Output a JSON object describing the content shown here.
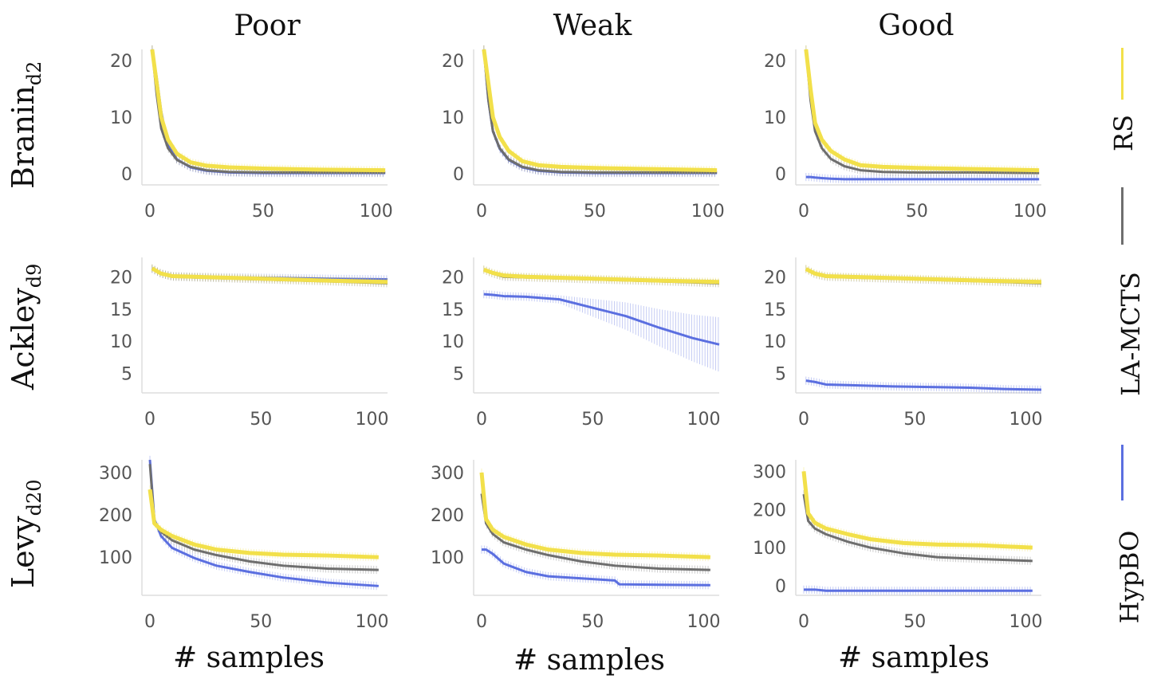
{
  "columns": [
    "Poor",
    "Weak",
    "Good"
  ],
  "rows": [
    {
      "name": "Branin",
      "sub": "d2"
    },
    {
      "name": "Ackley",
      "sub": "d9"
    },
    {
      "name": "Levy",
      "sub": "d20"
    }
  ],
  "xlabel": "# samples",
  "legend": [
    {
      "label": "RS",
      "color": "#f2e04a"
    },
    {
      "label": "LA-MCTS",
      "color": "#6e6e6e"
    },
    {
      "label": "HypBO",
      "color": "#5b6fe0"
    }
  ],
  "chart_data": [
    {
      "type": "line",
      "row": "Branin_d2",
      "column": "Poor",
      "xlim": [
        0,
        105
      ],
      "ylim": [
        -2,
        22
      ],
      "xticks": [
        0,
        50,
        100
      ],
      "yticks": [
        0,
        10,
        20
      ],
      "series": [
        {
          "name": "RS",
          "x": [
            1,
            3,
            5,
            8,
            12,
            18,
            25,
            35,
            50,
            75,
            104
          ],
          "values": [
            22,
            16,
            10,
            6,
            3.5,
            2,
            1.4,
            1.1,
            0.9,
            0.7,
            0.6
          ]
        },
        {
          "name": "LA-MCTS",
          "x": [
            1,
            3,
            5,
            8,
            12,
            18,
            25,
            35,
            50,
            75,
            104
          ],
          "values": [
            22,
            14,
            8,
            4.5,
            2.4,
            1.2,
            0.6,
            0.3,
            0.2,
            0.2,
            0.2
          ]
        },
        {
          "name": "HypBO",
          "x": [
            1,
            3,
            5,
            8,
            12,
            18,
            25,
            35,
            50,
            75,
            104
          ],
          "values": [
            22,
            17,
            11,
            5,
            2.5,
            1.1,
            0.5,
            0.2,
            0.1,
            0.1,
            0.1
          ]
        }
      ]
    },
    {
      "type": "line",
      "row": "Branin_d2",
      "column": "Weak",
      "xlim": [
        0,
        105
      ],
      "ylim": [
        -2,
        22
      ],
      "xticks": [
        0,
        50,
        100
      ],
      "yticks": [
        0,
        10,
        20
      ],
      "series": [
        {
          "name": "RS",
          "x": [
            1,
            3,
            5,
            8,
            12,
            18,
            25,
            35,
            50,
            75,
            104
          ],
          "values": [
            22,
            16,
            10,
            6.5,
            4,
            2.2,
            1.5,
            1.2,
            1.0,
            0.8,
            0.6
          ]
        },
        {
          "name": "LA-MCTS",
          "x": [
            1,
            3,
            5,
            8,
            12,
            18,
            25,
            35,
            50,
            75,
            104
          ],
          "values": [
            22,
            13,
            7.5,
            4.5,
            2.5,
            1.2,
            0.6,
            0.3,
            0.2,
            0.2,
            0.2
          ]
        },
        {
          "name": "HypBO",
          "x": [
            1,
            3,
            5,
            8,
            12,
            18,
            25,
            35,
            50,
            75,
            104
          ],
          "values": [
            22,
            13,
            7.5,
            4.4,
            2.4,
            1.1,
            0.5,
            0.2,
            0.1,
            0.1,
            0.1
          ]
        }
      ]
    },
    {
      "type": "line",
      "row": "Branin_d2",
      "column": "Good",
      "xlim": [
        0,
        105
      ],
      "ylim": [
        -2,
        22
      ],
      "xticks": [
        0,
        50,
        100
      ],
      "yticks": [
        0,
        10,
        20
      ],
      "series": [
        {
          "name": "RS",
          "x": [
            1,
            3,
            5,
            8,
            12,
            18,
            25,
            35,
            50,
            75,
            104
          ],
          "values": [
            22,
            15,
            9,
            6,
            4,
            2.5,
            1.5,
            1.2,
            1.0,
            0.8,
            0.6
          ]
        },
        {
          "name": "LA-MCTS",
          "x": [
            1,
            3,
            5,
            8,
            12,
            18,
            25,
            35,
            50,
            75,
            104
          ],
          "values": [
            22,
            13,
            7.5,
            4.5,
            2.6,
            1.3,
            0.6,
            0.3,
            0.2,
            0.2,
            0.1
          ]
        },
        {
          "name": "HypBO",
          "x": [
            1,
            3,
            5,
            8,
            12,
            18,
            25,
            35,
            50,
            75,
            104
          ],
          "values": [
            -0.6,
            -0.6,
            -0.7,
            -0.8,
            -0.9,
            -1.0,
            -1.0,
            -1.0,
            -1.0,
            -1.0,
            -1.0
          ]
        }
      ]
    },
    {
      "type": "line",
      "row": "Ackley_d9",
      "column": "Poor",
      "xlim": [
        0,
        107
      ],
      "ylim": [
        2,
        23
      ],
      "xticks": [
        0,
        50,
        100
      ],
      "yticks": [
        5,
        10,
        15,
        20
      ],
      "series": [
        {
          "name": "RS",
          "x": [
            1,
            5,
            10,
            20,
            40,
            60,
            80,
            107
          ],
          "values": [
            21.3,
            20.5,
            20.1,
            20.0,
            19.8,
            19.6,
            19.4,
            19.2
          ]
        },
        {
          "name": "LA-MCTS",
          "x": [
            1,
            5,
            10,
            20,
            40,
            60,
            80,
            107
          ],
          "values": [
            21.3,
            20.5,
            20.0,
            19.9,
            19.7,
            19.5,
            19.3,
            19.0
          ]
        },
        {
          "name": "HypBO",
          "x": [
            1,
            5,
            10,
            20,
            40,
            60,
            80,
            107
          ],
          "values": [
            21.2,
            20.5,
            20.1,
            20.0,
            19.9,
            19.8,
            19.7,
            19.6
          ]
        }
      ]
    },
    {
      "type": "line",
      "row": "Ackley_d9",
      "column": "Weak",
      "xlim": [
        0,
        107
      ],
      "ylim": [
        2,
        23
      ],
      "xticks": [
        0,
        50,
        100
      ],
      "yticks": [
        5,
        10,
        15,
        20
      ],
      "series": [
        {
          "name": "RS",
          "x": [
            1,
            5,
            10,
            20,
            40,
            60,
            80,
            107
          ],
          "values": [
            21.1,
            20.6,
            20.2,
            20.0,
            19.8,
            19.6,
            19.4,
            19.2
          ]
        },
        {
          "name": "LA-MCTS",
          "x": [
            1,
            5,
            10,
            20,
            40,
            60,
            80,
            107
          ],
          "values": [
            21.1,
            20.5,
            20.0,
            19.9,
            19.7,
            19.5,
            19.3,
            19.0
          ]
        },
        {
          "name": "HypBO",
          "x": [
            1,
            5,
            10,
            20,
            35,
            50,
            65,
            80,
            95,
            107
          ],
          "values": [
            17.3,
            17.2,
            17.0,
            16.9,
            16.5,
            15.2,
            13.9,
            12.1,
            10.5,
            9.5
          ]
        }
      ]
    },
    {
      "type": "line",
      "row": "Ackley_d9",
      "column": "Good",
      "xlim": [
        0,
        107
      ],
      "ylim": [
        2,
        23
      ],
      "xticks": [
        0,
        50,
        100
      ],
      "yticks": [
        5,
        10,
        15,
        20
      ],
      "series": [
        {
          "name": "RS",
          "x": [
            1,
            5,
            10,
            20,
            40,
            60,
            80,
            107
          ],
          "values": [
            21.2,
            20.5,
            20.1,
            20.0,
            19.8,
            19.6,
            19.4,
            19.2
          ]
        },
        {
          "name": "LA-MCTS",
          "x": [
            1,
            5,
            10,
            20,
            40,
            60,
            80,
            107
          ],
          "values": [
            21.2,
            20.4,
            20.0,
            19.9,
            19.7,
            19.5,
            19.3,
            19.0
          ]
        },
        {
          "name": "HypBO",
          "x": [
            1,
            5,
            10,
            20,
            40,
            60,
            75,
            90,
            107
          ],
          "values": [
            3.9,
            3.7,
            3.3,
            3.2,
            3.0,
            2.9,
            2.8,
            2.6,
            2.5
          ]
        }
      ]
    },
    {
      "type": "line",
      "row": "Levy_d20",
      "column": "Poor",
      "xlim": [
        0,
        107
      ],
      "ylim": [
        10,
        330
      ],
      "xticks": [
        0,
        50,
        100
      ],
      "yticks": [
        100,
        200,
        300
      ],
      "series": [
        {
          "name": "RS",
          "x": [
            0,
            2,
            5,
            10,
            20,
            30,
            45,
            60,
            80,
            103
          ],
          "values": [
            260,
            180,
            165,
            150,
            130,
            118,
            110,
            106,
            104,
            100
          ]
        },
        {
          "name": "LA-MCTS",
          "x": [
            0,
            2,
            5,
            10,
            20,
            30,
            45,
            60,
            80,
            103
          ],
          "values": [
            320,
            185,
            160,
            140,
            118,
            105,
            90,
            80,
            73,
            70
          ]
        },
        {
          "name": "HypBO",
          "x": [
            0,
            2,
            5,
            10,
            20,
            30,
            45,
            60,
            80,
            103
          ],
          "values": [
            330,
            190,
            150,
            122,
            98,
            80,
            65,
            52,
            40,
            32
          ]
        }
      ]
    },
    {
      "type": "line",
      "row": "Levy_d20",
      "column": "Weak",
      "xlim": [
        0,
        107
      ],
      "ylim": [
        10,
        330
      ],
      "xticks": [
        0,
        50,
        100
      ],
      "yticks": [
        100,
        200,
        300
      ],
      "series": [
        {
          "name": "RS",
          "x": [
            0,
            2,
            5,
            10,
            20,
            30,
            45,
            60,
            80,
            103
          ],
          "values": [
            300,
            190,
            165,
            148,
            130,
            118,
            110,
            106,
            104,
            100
          ]
        },
        {
          "name": "LA-MCTS",
          "x": [
            0,
            2,
            5,
            10,
            20,
            30,
            45,
            60,
            80,
            103
          ],
          "values": [
            250,
            180,
            155,
            135,
            118,
            105,
            90,
            80,
            73,
            70
          ]
        },
        {
          "name": "HypBO",
          "x": [
            0,
            2,
            5,
            10,
            20,
            30,
            45,
            60,
            62,
            80,
            103
          ],
          "values": [
            118,
            118,
            108,
            85,
            65,
            55,
            50,
            45,
            36,
            35,
            34
          ]
        }
      ]
    },
    {
      "type": "line",
      "row": "Levy_d20",
      "column": "Good",
      "xlim": [
        0,
        107
      ],
      "ylim": [
        -25,
        330
      ],
      "xticks": [
        0,
        50,
        100
      ],
      "yticks": [
        0,
        100,
        200,
        300
      ],
      "series": [
        {
          "name": "RS",
          "x": [
            0,
            2,
            5,
            10,
            20,
            30,
            45,
            60,
            80,
            103
          ],
          "values": [
            300,
            190,
            165,
            150,
            135,
            122,
            112,
            108,
            106,
            100
          ]
        },
        {
          "name": "LA-MCTS",
          "x": [
            0,
            2,
            5,
            10,
            20,
            30,
            45,
            60,
            80,
            103
          ],
          "values": [
            240,
            170,
            150,
            135,
            115,
            100,
            85,
            75,
            70,
            65
          ]
        },
        {
          "name": "HypBO",
          "x": [
            0,
            5,
            10,
            30,
            60,
            103
          ],
          "values": [
            -10,
            -10,
            -13,
            -13,
            -13,
            -13
          ]
        }
      ]
    }
  ]
}
